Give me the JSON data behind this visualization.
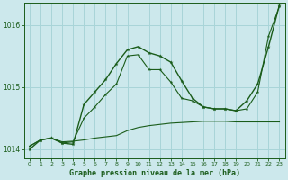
{
  "xlabel": "Graphe pression niveau de la mer (hPa)",
  "background_color": "#cce8ec",
  "grid_color": "#a8d4d8",
  "line_color": "#1a5c1a",
  "ylim": [
    1013.85,
    1016.35
  ],
  "yticks": [
    1014,
    1015,
    1016
  ],
  "xlim": [
    -0.5,
    23.5
  ],
  "xticks": [
    0,
    1,
    2,
    3,
    4,
    5,
    6,
    7,
    8,
    9,
    10,
    11,
    12,
    13,
    14,
    15,
    16,
    17,
    18,
    19,
    20,
    21,
    22,
    23
  ],
  "series1": [
    1014.05,
    1014.15,
    1014.18,
    1014.12,
    1014.13,
    1014.15,
    1014.18,
    1014.2,
    1014.22,
    1014.3,
    1014.35,
    1014.38,
    1014.4,
    1014.42,
    1014.43,
    1014.44,
    1014.45,
    1014.45,
    1014.45,
    1014.44,
    1014.44,
    1014.44,
    1014.44,
    1014.44
  ],
  "series2": [
    1014.05,
    1014.15,
    1014.18,
    1014.1,
    1014.12,
    1014.5,
    1014.68,
    1014.88,
    1015.05,
    1015.5,
    1015.52,
    1015.28,
    1015.28,
    1015.08,
    1014.82,
    1014.78,
    1014.68,
    1014.65,
    1014.65,
    1014.62,
    1014.65,
    1014.92,
    1015.82,
    1016.3
  ],
  "series3": [
    1014.0,
    1014.15,
    1014.18,
    1014.1,
    1014.08,
    1014.72,
    1014.92,
    1015.12,
    1015.38,
    1015.6,
    1015.65,
    1015.55,
    1015.5,
    1015.4,
    1015.1,
    1014.82,
    1014.68,
    1014.65,
    1014.65,
    1014.62,
    1014.78,
    1015.05,
    1015.65,
    1016.32
  ]
}
